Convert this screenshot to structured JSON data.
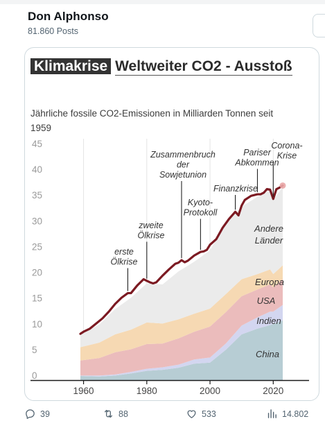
{
  "post": {
    "display_name": "Don Alphonso",
    "post_count": "81.860 Posts"
  },
  "chart": {
    "title_tag": "Klimakrise",
    "title_rest": "Weltweiter CO2 - Ausstoß",
    "subtitle": "Jährliche fossile CO2-Emissionen in Milliarden Tonnen seit 1959"
  },
  "chart_data": {
    "type": "area",
    "title": "Klimakrise Weltweiter CO2 - Ausstoß",
    "subtitle": "Jährliche fossile CO2-Emissionen in Milliarden Tonnen seit 1959",
    "xlim": [
      1959,
      2023
    ],
    "ylim": [
      0,
      45
    ],
    "x_ticks": [
      1960,
      1980,
      2000,
      2020
    ],
    "y_ticks": [
      0,
      5,
      10,
      15,
      20,
      25,
      30,
      35,
      40,
      45
    ],
    "grid": "vertical",
    "stacked": true,
    "x": [
      1959,
      1965,
      1970,
      1975,
      1980,
      1985,
      1990,
      1995,
      2000,
      2005,
      2010,
      2015,
      2019,
      2020,
      2023
    ],
    "series": [
      {
        "name": "China",
        "color": "#b7cdd4",
        "values": [
          0.8,
          0.7,
          0.9,
          1.3,
          1.8,
          2.0,
          2.4,
          3.2,
          3.4,
          5.9,
          8.9,
          10.0,
          10.7,
          10.9,
          11.6
        ]
      },
      {
        "name": "Indien",
        "color": "#d3d6f0",
        "values": [
          0.1,
          0.2,
          0.2,
          0.3,
          0.4,
          0.5,
          0.6,
          0.8,
          1.0,
          1.2,
          1.7,
          2.2,
          2.6,
          2.4,
          3.0
        ]
      },
      {
        "name": "USA",
        "color": "#ebbcbc",
        "values": [
          2.9,
          3.4,
          4.3,
          4.4,
          4.8,
          4.6,
          5.1,
          5.4,
          6.0,
          6.1,
          5.7,
          5.4,
          5.3,
          4.7,
          5.0
        ]
      },
      {
        "name": "Europa",
        "color": "#f6d9b3",
        "values": [
          2.6,
          3.0,
          3.5,
          3.8,
          4.2,
          3.9,
          3.7,
          3.5,
          3.5,
          3.5,
          3.3,
          3.0,
          2.9,
          2.6,
          2.7
        ]
      },
      {
        "name": "Andere Länder",
        "color": "#ebebeb",
        "values": [
          2.6,
          3.5,
          4.9,
          6.2,
          7.6,
          7.6,
          9.3,
          10.1,
          11.3,
          13.8,
          14.1,
          15.0,
          15.4,
          14.4,
          15.2
        ]
      }
    ],
    "total": {
      "name": "Weltweit",
      "color": "#7c1a22",
      "x": [
        1959,
        1960,
        1962,
        1964,
        1966,
        1968,
        1970,
        1972,
        1974,
        1975,
        1977,
        1979,
        1980,
        1981,
        1982,
        1983,
        1985,
        1987,
        1989,
        1990,
        1991,
        1992,
        1993,
        1995,
        1997,
        1998,
        1999,
        2000,
        2002,
        2004,
        2006,
        2008,
        2009,
        2010,
        2011,
        2013,
        2015,
        2016,
        2017,
        2018,
        2019,
        2020,
        2021,
        2022,
        2023
      ],
      "values": [
        9.0,
        9.4,
        10.0,
        11.0,
        12.0,
        13.3,
        14.8,
        16.0,
        16.9,
        16.9,
        18.4,
        19.6,
        19.3,
        19.0,
        18.8,
        19.0,
        20.3,
        21.5,
        22.6,
        22.8,
        23.3,
        22.9,
        23.2,
        24.2,
        24.9,
        25.0,
        25.3,
        26.3,
        27.4,
        29.6,
        31.3,
        32.7,
        32.0,
        33.9,
        35.0,
        35.8,
        36.1,
        36.1,
        36.4,
        37.1,
        37.0,
        35.2,
        37.1,
        37.4,
        37.8
      ]
    },
    "annotations": [
      {
        "year": 1974,
        "value": 16.9,
        "text": [
          "erste",
          "Ölkrise"
        ]
      },
      {
        "year": 1980,
        "value": 19.3,
        "text": [
          "zweite",
          "Ölkrise"
        ]
      },
      {
        "year": 1991,
        "value": 23.3,
        "text": [
          "Zusammenbruch",
          "der",
          "Sowjetunion"
        ]
      },
      {
        "year": 1997,
        "value": 24.9,
        "text": [
          "Kyoto-",
          "Protokoll"
        ]
      },
      {
        "year": 2008,
        "value": 32.7,
        "text": [
          "Finanzkrise"
        ]
      },
      {
        "year": 2015,
        "value": 36.1,
        "text": [
          "Pariser",
          "Abkommen"
        ]
      },
      {
        "year": 2020,
        "value": 35.2,
        "text": [
          "Corona-",
          "Krise"
        ]
      }
    ],
    "region_labels": [
      {
        "text": [
          "Andere",
          "Länder"
        ]
      },
      {
        "text": [
          "Europa"
        ]
      },
      {
        "text": [
          "USA"
        ]
      },
      {
        "text": [
          "Indien"
        ]
      },
      {
        "text": [
          "China"
        ]
      }
    ]
  },
  "actions": {
    "replies": "39",
    "reposts": "88",
    "likes": "533",
    "views": "14.802"
  },
  "colors": {
    "title_tag_bg": "#333333",
    "total_line": "#7c1a22",
    "action_gray": "#536471",
    "repost_green": "#00ba7c"
  }
}
